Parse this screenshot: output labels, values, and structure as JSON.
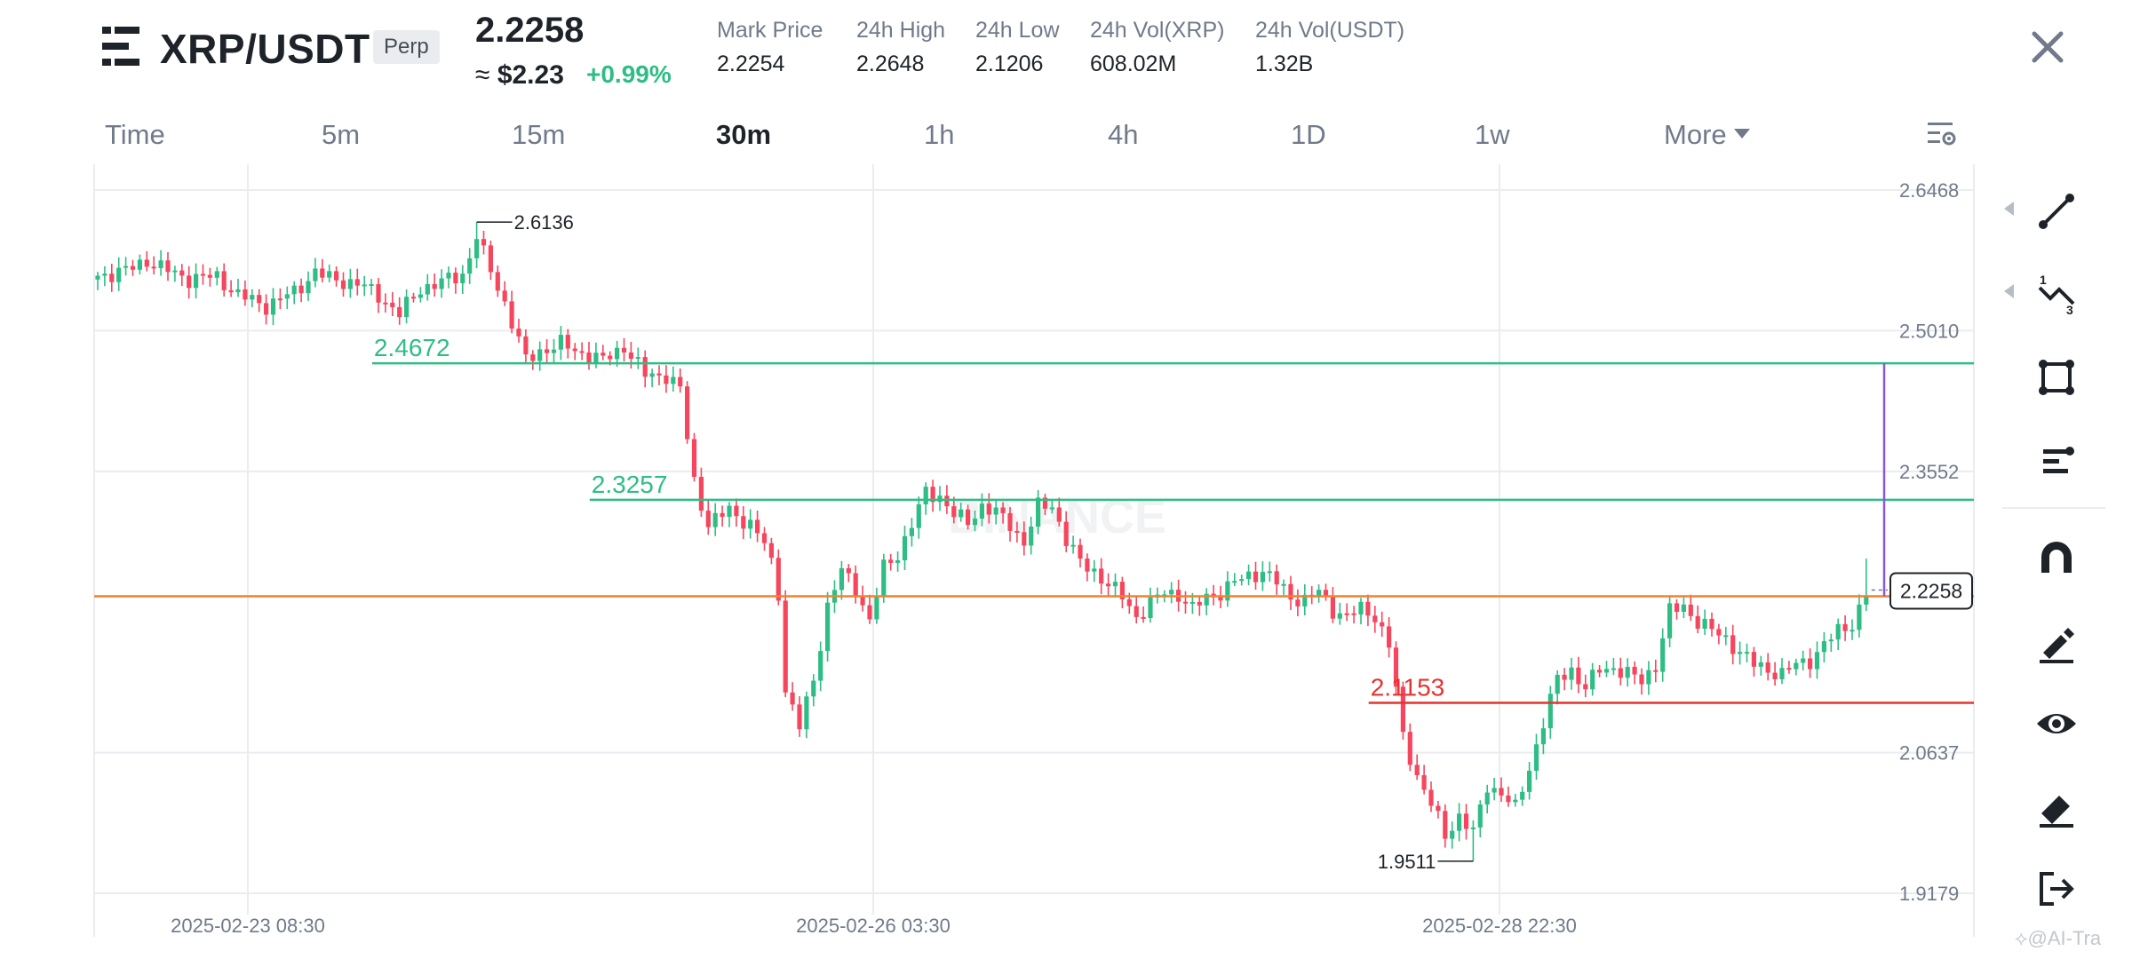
{
  "header": {
    "pair": "XRP/USDT",
    "contract_badge": "Perp",
    "last_price": "2.2258",
    "usd_prefix": "≈",
    "usd_value": "$2.23",
    "change": "+0.99%",
    "stats": [
      {
        "label": "Mark Price",
        "value": "2.2254"
      },
      {
        "label": "24h High",
        "value": "2.2648"
      },
      {
        "label": "24h Low",
        "value": "2.1206"
      },
      {
        "label": "24h Vol(XRP)",
        "value": "608.02M"
      },
      {
        "label": "24h Vol(USDT)",
        "value": "1.32B"
      }
    ],
    "close_icon": "close-icon",
    "menu_icon": "menu-icon"
  },
  "timeframes": {
    "items": [
      "Time",
      "5m",
      "15m",
      "30m",
      "1h",
      "4h",
      "1D",
      "1w",
      "More"
    ],
    "active": "30m",
    "settings_icon": "chart-settings-icon"
  },
  "chart_data": {
    "type": "candlestick",
    "interval": "30m",
    "up_color": "#2ebd85",
    "down_color": "#f6465d",
    "price_scale": {
      "ticks": [
        "2.6468",
        "2.5010",
        "2.3552",
        "2.2258",
        "2.0637",
        "1.9179"
      ],
      "range": [
        1.9179,
        2.6468
      ]
    },
    "time_axis": {
      "ticks": [
        "2025-02-23 08:30",
        "2025-02-26 03:30",
        "2025-02-28 22:30"
      ]
    },
    "current_price_label": "2.2258",
    "watermark": "BINANCE",
    "annotations": {
      "high_label": "2.6136",
      "low_label": "1.9511"
    },
    "horizontal_levels": [
      {
        "label": "2.4672",
        "value": 2.4672,
        "color": "#2ebd85",
        "from_index": 41
      },
      {
        "label": "2.3257",
        "value": 2.3257,
        "color": "#2ebd85",
        "from_index": 72
      },
      {
        "label": "",
        "value": 2.2258,
        "color": "#f0832a",
        "from_index": 0
      },
      {
        "label": "2.1153",
        "value": 2.1153,
        "color": "#e5342d",
        "from_index": 183
      }
    ],
    "measure_line": {
      "from": 2.2258,
      "to": 2.4672,
      "color": "#8b55e6"
    },
    "anchors": [
      [
        0,
        2.558
      ],
      [
        4,
        2.563
      ],
      [
        7,
        2.574
      ],
      [
        9,
        2.566
      ],
      [
        13,
        2.555
      ],
      [
        17,
        2.557
      ],
      [
        20,
        2.538
      ],
      [
        24,
        2.527
      ],
      [
        28,
        2.541
      ],
      [
        31,
        2.562
      ],
      [
        33,
        2.555
      ],
      [
        37,
        2.55
      ],
      [
        40,
        2.538
      ],
      [
        43,
        2.518
      ],
      [
        46,
        2.545
      ],
      [
        49,
        2.551
      ],
      [
        52,
        2.56
      ],
      [
        54,
        2.596
      ],
      [
        58,
        2.53
      ],
      [
        61,
        2.47
      ],
      [
        63,
        2.48
      ],
      [
        66,
        2.487
      ],
      [
        69,
        2.478
      ],
      [
        72,
        2.47
      ],
      [
        75,
        2.485
      ],
      [
        78,
        2.455
      ],
      [
        81,
        2.455
      ],
      [
        83,
        2.44
      ],
      [
        84,
        2.39
      ],
      [
        85,
        2.345
      ],
      [
        87,
        2.3
      ],
      [
        90,
        2.315
      ],
      [
        93,
        2.3
      ],
      [
        95,
        2.28
      ],
      [
        96,
        2.26
      ],
      [
        97,
        2.23
      ],
      [
        98,
        2.128
      ],
      [
        100,
        2.09
      ],
      [
        102,
        2.14
      ],
      [
        104,
        2.215
      ],
      [
        106,
        2.252
      ],
      [
        108,
        2.235
      ],
      [
        110,
        2.2
      ],
      [
        112,
        2.255
      ],
      [
        114,
        2.27
      ],
      [
        116,
        2.3
      ],
      [
        118,
        2.333
      ],
      [
        120,
        2.33
      ],
      [
        122,
        2.31
      ],
      [
        124,
        2.302
      ],
      [
        126,
        2.32
      ],
      [
        128,
        2.312
      ],
      [
        130,
        2.3
      ],
      [
        132,
        2.282
      ],
      [
        134,
        2.318
      ],
      [
        136,
        2.32
      ],
      [
        138,
        2.285
      ],
      [
        140,
        2.26
      ],
      [
        142,
        2.252
      ],
      [
        144,
        2.238
      ],
      [
        146,
        2.225
      ],
      [
        148,
        2.205
      ],
      [
        150,
        2.218
      ],
      [
        152,
        2.23
      ],
      [
        154,
        2.228
      ],
      [
        156,
        2.212
      ],
      [
        158,
        2.225
      ],
      [
        160,
        2.23
      ],
      [
        162,
        2.24
      ],
      [
        164,
        2.247
      ],
      [
        166,
        2.252
      ],
      [
        168,
        2.24
      ],
      [
        170,
        2.225
      ],
      [
        172,
        2.222
      ],
      [
        174,
        2.23
      ],
      [
        176,
        2.212
      ],
      [
        178,
        2.205
      ],
      [
        180,
        2.212
      ],
      [
        182,
        2.206
      ],
      [
        184,
        2.175
      ],
      [
        186,
        2.08
      ],
      [
        188,
        2.04
      ],
      [
        190,
        2.01
      ],
      [
        192,
        1.978
      ],
      [
        194,
        1.998
      ],
      [
        196,
        1.98
      ],
      [
        198,
        2.03
      ],
      [
        200,
        2.022
      ],
      [
        202,
        2.005
      ],
      [
        204,
        2.048
      ],
      [
        206,
        2.095
      ],
      [
        208,
        2.14
      ],
      [
        210,
        2.15
      ],
      [
        212,
        2.13
      ],
      [
        214,
        2.15
      ],
      [
        216,
        2.152
      ],
      [
        218,
        2.145
      ],
      [
        220,
        2.138
      ],
      [
        222,
        2.155
      ],
      [
        224,
        2.21
      ],
      [
        226,
        2.215
      ],
      [
        228,
        2.2
      ],
      [
        230,
        2.19
      ],
      [
        232,
        2.182
      ],
      [
        234,
        2.168
      ],
      [
        236,
        2.155
      ],
      [
        238,
        2.15
      ],
      [
        240,
        2.145
      ],
      [
        242,
        2.155
      ],
      [
        244,
        2.16
      ],
      [
        246,
        2.175
      ],
      [
        248,
        2.19
      ],
      [
        250,
        2.198
      ],
      [
        252,
        2.226
      ]
    ]
  },
  "drawing_tools": [
    "trend-line-icon",
    "fib-tool-icon",
    "shape-tool-icon",
    "text-tool-icon",
    "magnet-icon",
    "lock-draw-icon",
    "visibility-icon",
    "eraser-icon",
    "exit-icon"
  ],
  "watermark_text": "⟡@AI-Tra"
}
